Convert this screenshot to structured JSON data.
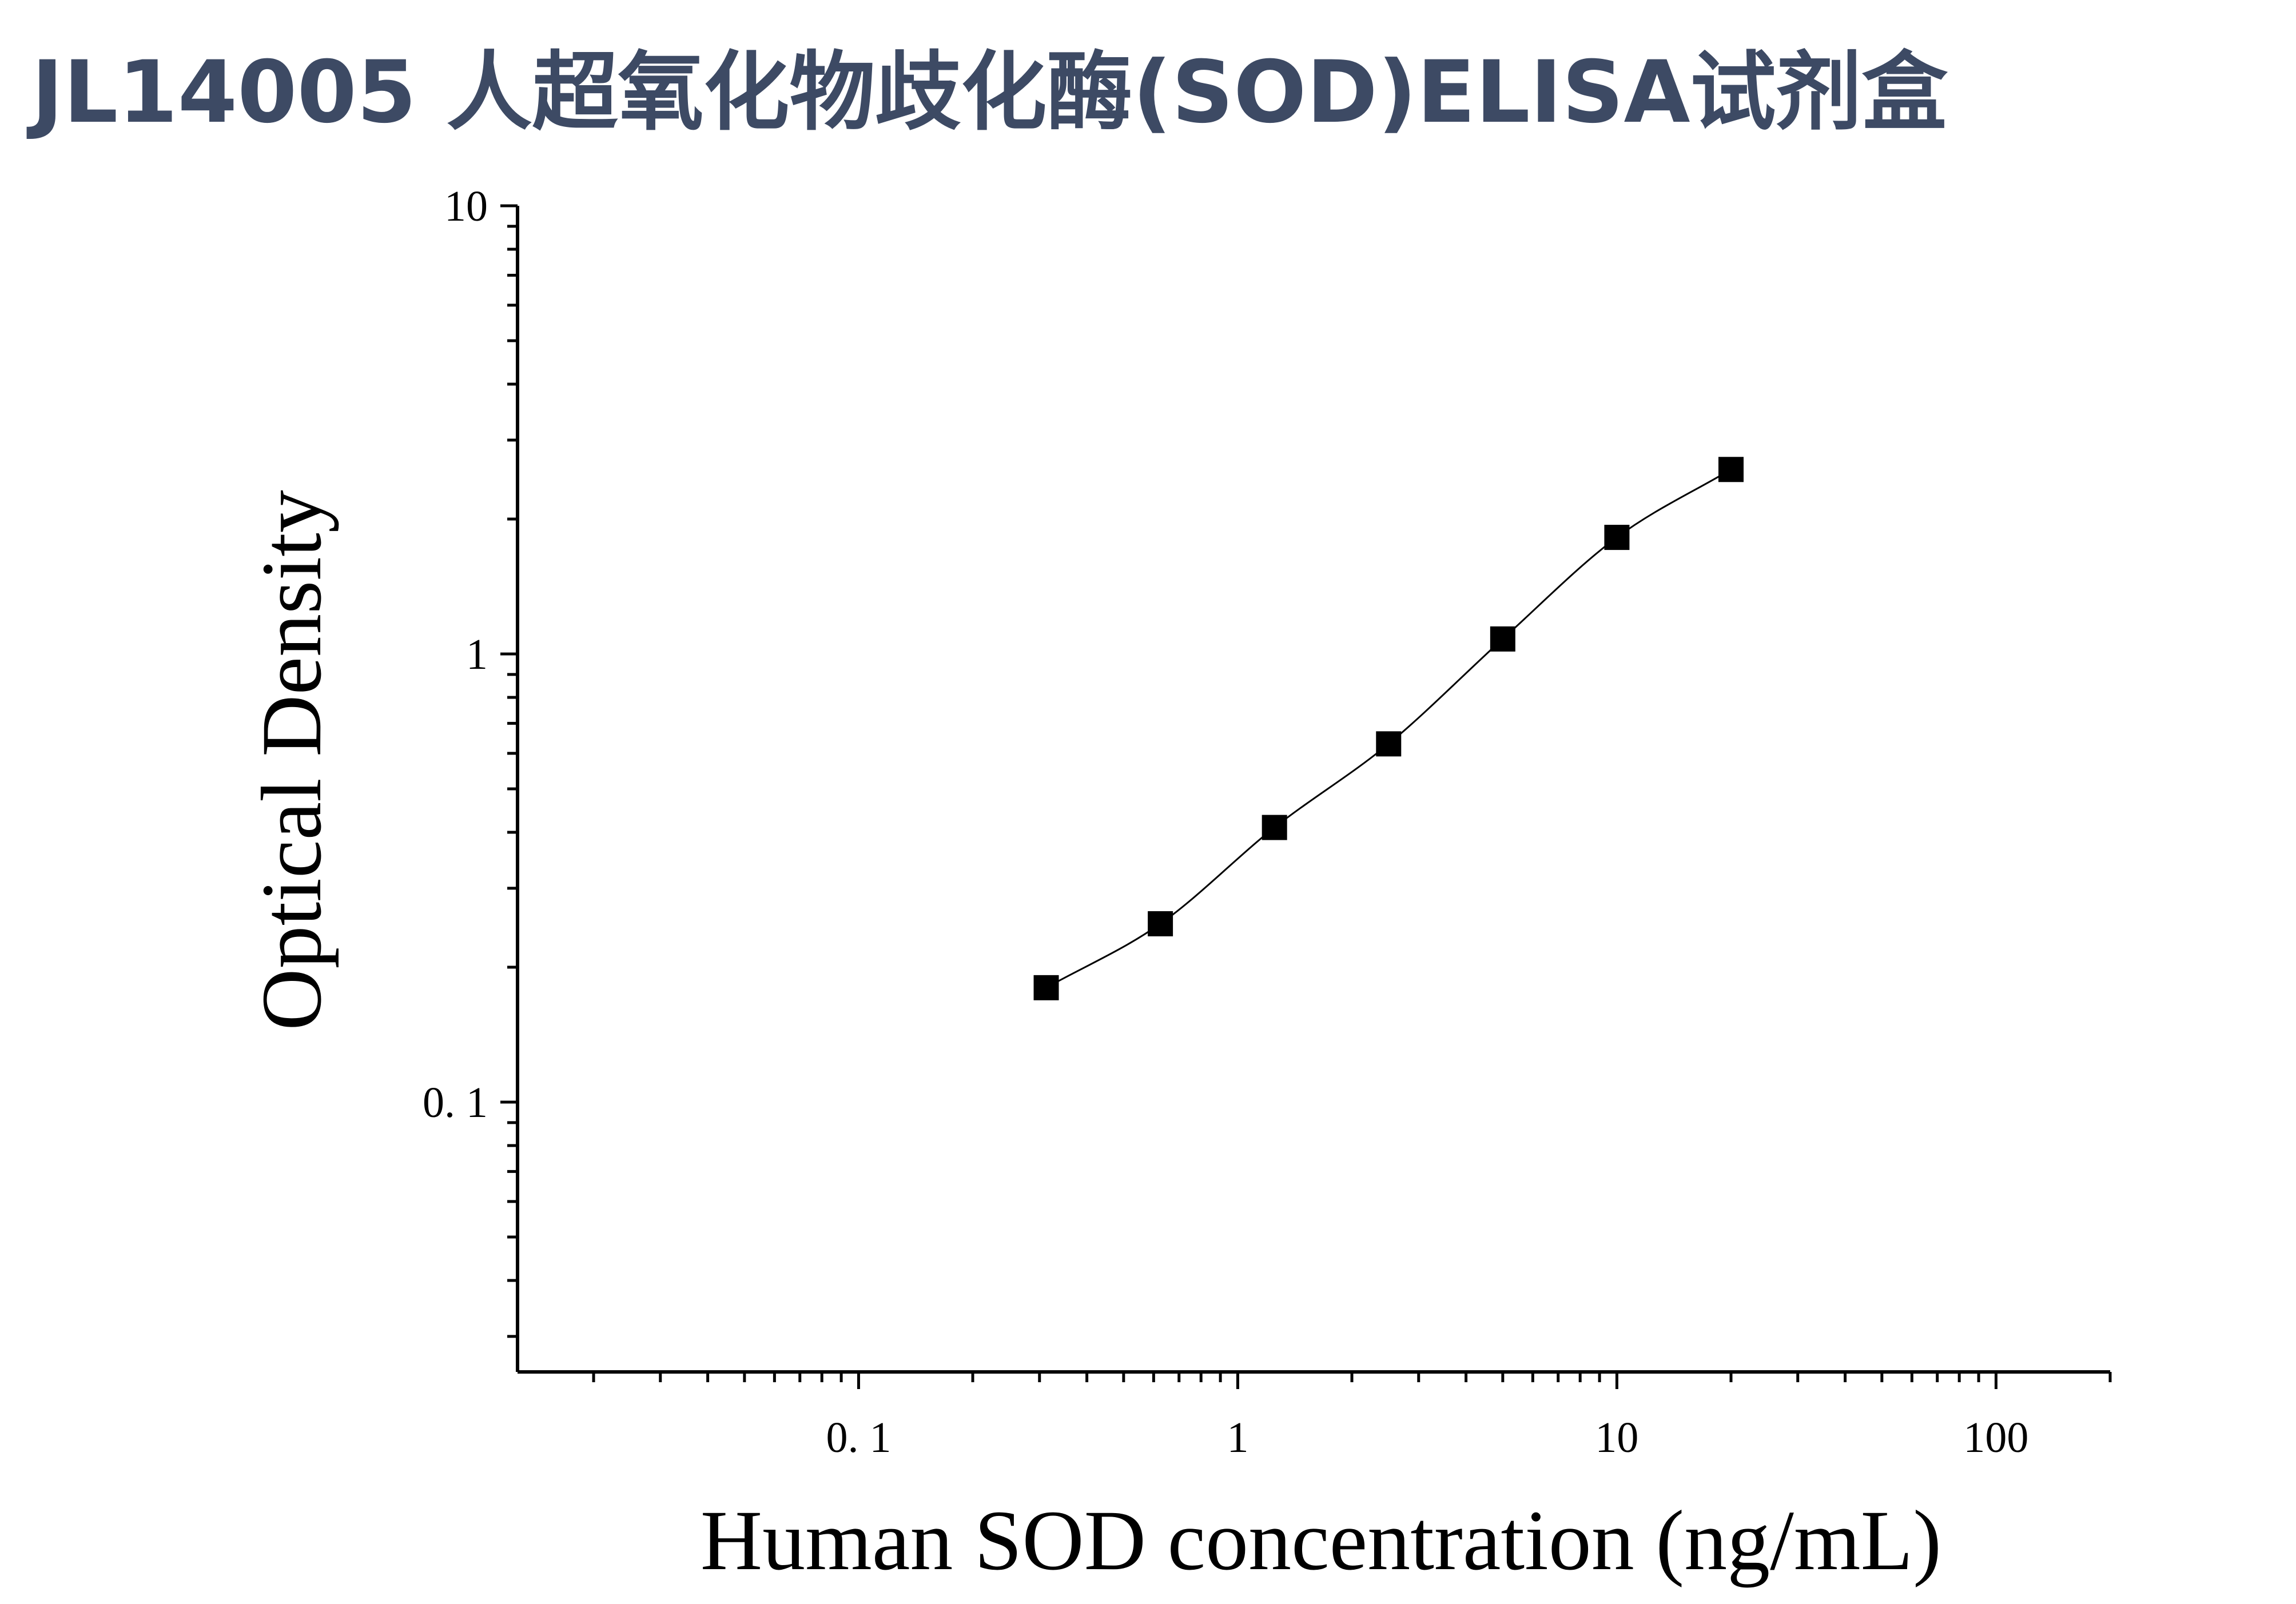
{
  "title": "JL14005 人超氧化物歧化酶(SOD)ELISA试剂盒",
  "colors": {
    "title": "#3d4a64",
    "axis": "#000000",
    "marker": "#000000",
    "curve": "#000000"
  },
  "chart_data": {
    "type": "scatter",
    "title": "JL14005 人超氧化物歧化酶(SOD)ELISA试剂盒",
    "xlabel": "Human SOD concentration (ng/mL)",
    "ylabel": "Optical Density",
    "xscale": "log",
    "yscale": "log",
    "xlim": [
      0.0126,
      200
    ],
    "ylim": [
      0.025,
      10
    ],
    "xticks": [
      0.1,
      1,
      10,
      100
    ],
    "xtick_labels": [
      "0. 1",
      "1",
      "10",
      "100"
    ],
    "yticks": [
      0.1,
      1,
      10
    ],
    "ytick_labels": [
      "0. 1",
      "1",
      "10"
    ],
    "grid": false,
    "legend": "none",
    "marker": "square",
    "fit_curve": true,
    "series": [
      {
        "x": [
          0.3125,
          0.625,
          1.25,
          2.5,
          5,
          10,
          20
        ],
        "y": [
          0.18,
          0.25,
          0.41,
          0.63,
          1.08,
          1.82,
          2.58
        ]
      }
    ]
  }
}
